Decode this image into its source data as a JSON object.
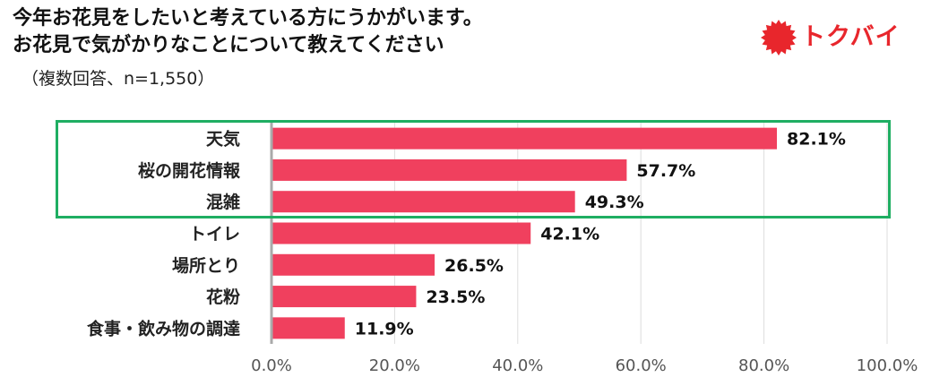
{
  "header": {
    "title_line1": "今年お花見をしたいと考えている方にうかがいます。",
    "title_line2": "お花見で気がかりなことについて教えてください",
    "subtitle": "（複数回答、n=1,550）"
  },
  "logo": {
    "text": "トクバイ",
    "icon": "burst-seal-icon",
    "color": "#e8262c"
  },
  "colors": {
    "bar": "#f0405e",
    "highlight": "#1fae62",
    "axis": "#aaaaaa",
    "grid": "#dddddd"
  },
  "chart_data": {
    "type": "bar",
    "orientation": "horizontal",
    "categories": [
      "天気",
      "桜の開花情報",
      "混雑",
      "トイレ",
      "場所とり",
      "花粉",
      "食事・飲み物の調達"
    ],
    "values": [
      82.1,
      57.7,
      49.3,
      42.1,
      26.5,
      23.5,
      11.9
    ],
    "data_labels": [
      "82.1%",
      "57.7%",
      "49.3%",
      "42.1%",
      "26.5%",
      "23.5%",
      "11.9%"
    ],
    "xlim": [
      0,
      100
    ],
    "xticks": [
      "0.0%",
      "20.0%",
      "40.0%",
      "60.0%",
      "80.0%",
      "100.0%"
    ],
    "grid": true,
    "highlighted_categories": [
      "天気",
      "桜の開花情報",
      "混雑"
    ]
  }
}
